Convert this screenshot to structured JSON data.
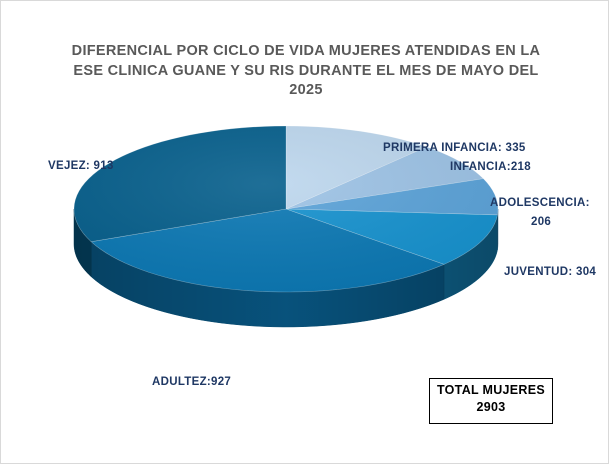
{
  "chart_data": {
    "type": "pie",
    "title": "DIFERENCIAL POR CICLO DE VIDA MUJERES ATENDIDAS EN LA\nESE CLINICA  GUANE Y SU RIS DURANTE EL MES DE MAYO DEL\n2025",
    "categories": [
      "PRIMERA INFANCIA",
      "INFANCIA",
      "ADOLESCENCIA",
      "JUVENTUD",
      "ADULTEZ",
      "VEJEZ"
    ],
    "values": [
      335,
      218,
      206,
      304,
      927,
      913
    ],
    "labels": {
      "primera_infancia": "PRIMERA INFANCIA: 335",
      "infancia": "INFANCIA:218",
      "adolescencia_1": "ADOLESCENCIA:",
      "adolescencia_2": "206",
      "juventud": "JUVENTUD: 304",
      "adultez": "ADULTEZ:927",
      "vejez": "VEJEZ: 913"
    },
    "colors": [
      "#bdd7ee",
      "#9dc3e6",
      "#5ba3d9",
      "#1692cf",
      "#0b78b4",
      "#065f8c"
    ],
    "style": "3d-pie",
    "legend": "none"
  },
  "total_box": {
    "label": "TOTAL MUJERES",
    "value": "2903"
  }
}
